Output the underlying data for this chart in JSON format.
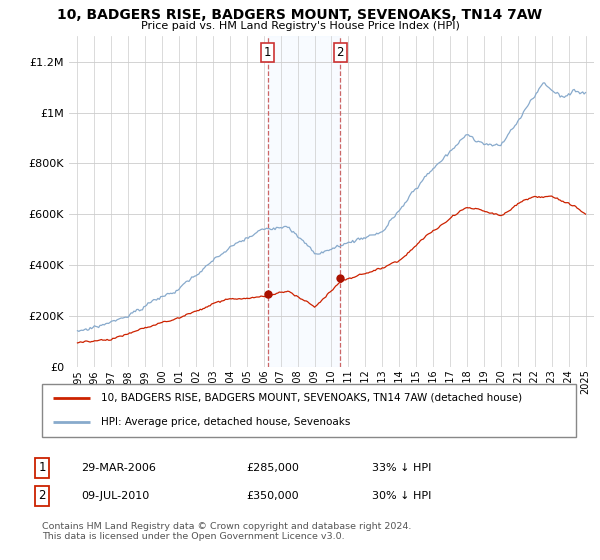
{
  "title": "10, BADGERS RISE, BADGERS MOUNT, SEVENOAKS, TN14 7AW",
  "subtitle": "Price paid vs. HM Land Registry's House Price Index (HPI)",
  "legend_line1": "10, BADGERS RISE, BADGERS MOUNT, SEVENOAKS, TN14 7AW (detached house)",
  "legend_line2": "HPI: Average price, detached house, Sevenoaks",
  "transaction1_date": "29-MAR-2006",
  "transaction1_price": "£285,000",
  "transaction1_hpi": "33% ↓ HPI",
  "transaction1_year": 2006.23,
  "transaction1_value": 285000,
  "transaction2_date": "09-JUL-2010",
  "transaction2_price": "£350,000",
  "transaction2_hpi": "30% ↓ HPI",
  "transaction2_year": 2010.52,
  "transaction2_value": 350000,
  "footer": "Contains HM Land Registry data © Crown copyright and database right 2024.\nThis data is licensed under the Open Government Licence v3.0.",
  "hpi_color": "#88aacc",
  "price_color": "#cc2200",
  "highlight_color": "#ddeeff",
  "vline_color": "#cc6666",
  "marker_color": "#aa1100",
  "ylim": [
    0,
    1300000
  ],
  "yticks": [
    0,
    200000,
    400000,
    600000,
    800000,
    1000000,
    1200000
  ],
  "ytick_labels": [
    "£0",
    "£200K",
    "£400K",
    "£600K",
    "£800K",
    "£1M",
    "£1.2M"
  ],
  "xmin": 1994.5,
  "xmax": 2025.5
}
